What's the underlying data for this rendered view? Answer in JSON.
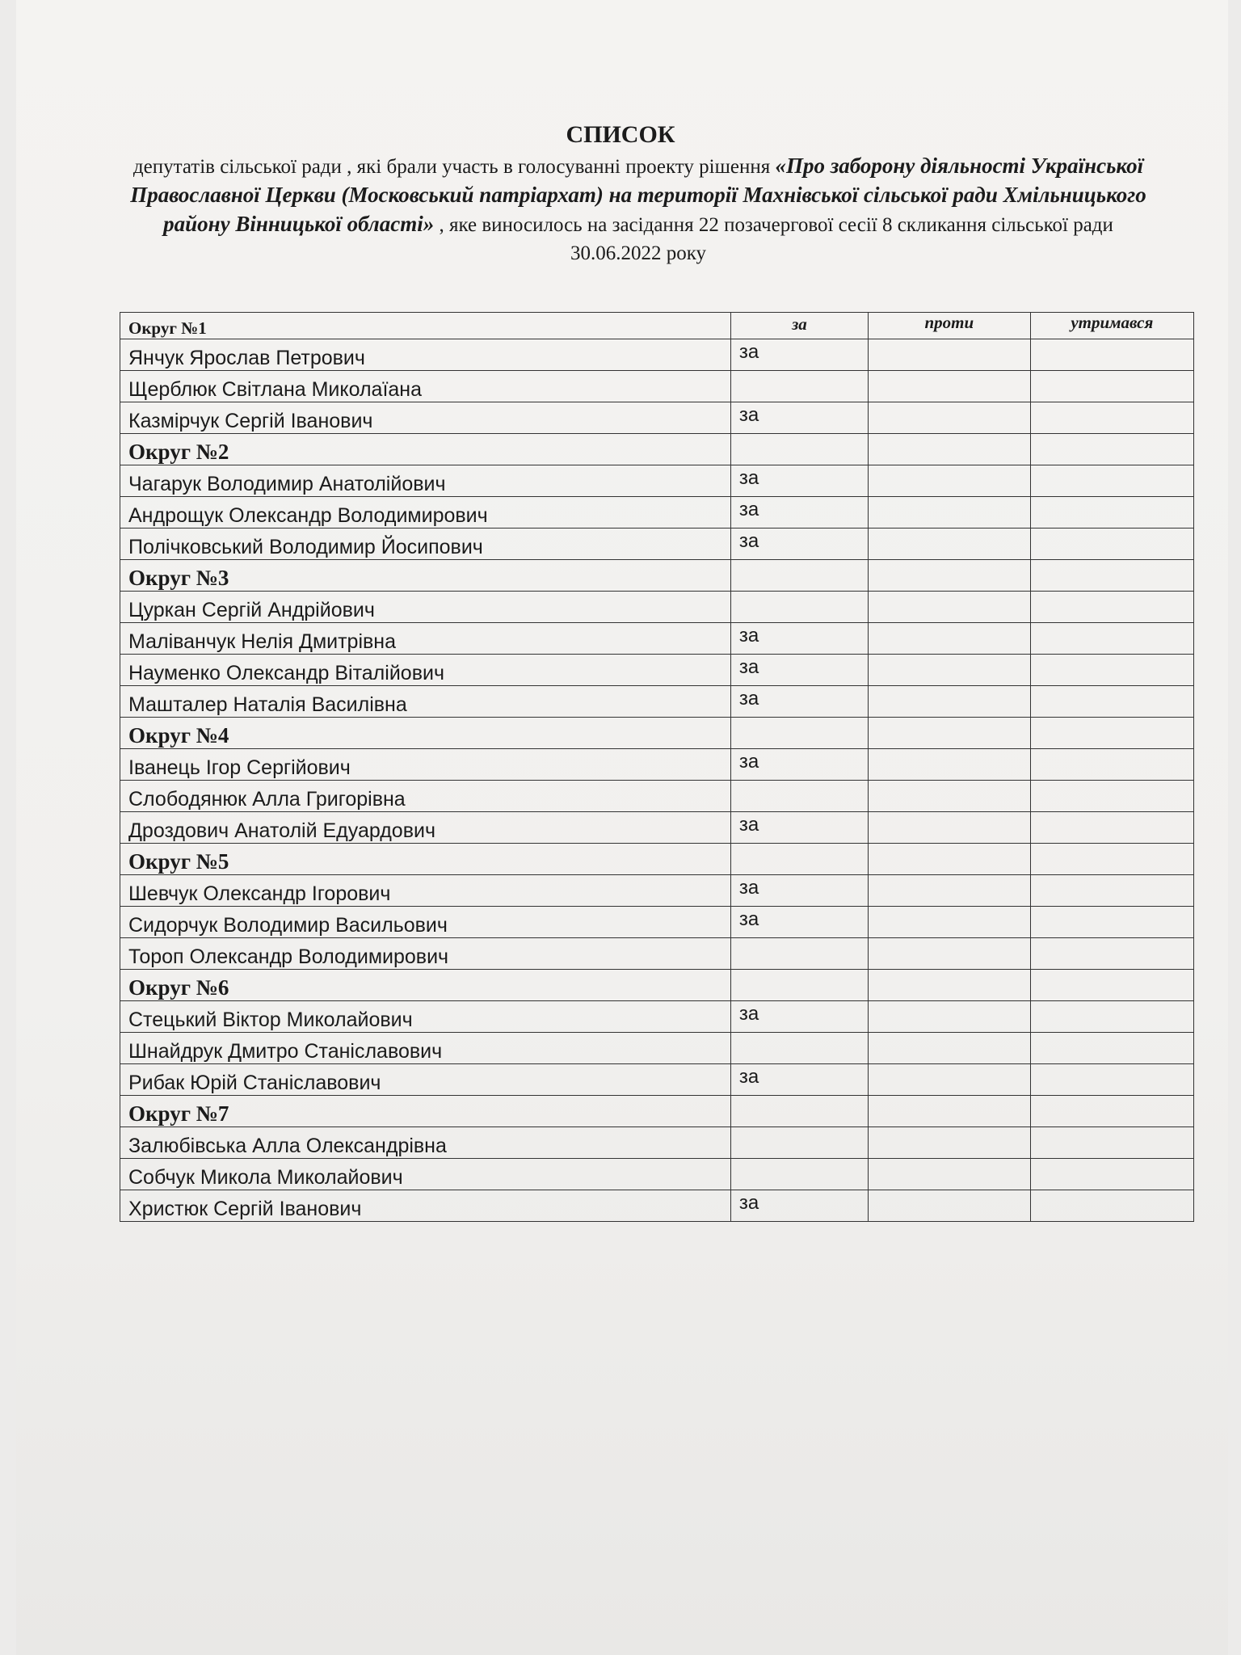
{
  "document": {
    "title": "СПИСОК",
    "intro": {
      "before": "депутатів сільської ради , які брали участь в голосуванні проекту рішення ",
      "subject": "«Про заборону діяльності Української Православної Церкви (Московський патріархат) на території Махнівської сільської ради Хмільницького району Вінницької області»",
      "after": " , яке виносилось на засідання 22 позачергової сесії 8 скликання сільської ради 30.06.2022 року"
    },
    "table": {
      "header": [
        "Округ №1",
        "за",
        "проти",
        "утримався"
      ],
      "rows": [
        {
          "name": "Янчук Ярослав Петрович",
          "vote": "за"
        },
        {
          "name": "Щерблюк Світлана Миколаїана"
        },
        {
          "name": "Казмірчук Сергій Іванович",
          "vote": "за"
        },
        {
          "section": "Округ №2"
        },
        {
          "name": "Чагарук Володимир Анатолійович",
          "vote": "за"
        },
        {
          "name": "Андрощук Олександр Володимирович",
          "vote": "за"
        },
        {
          "name": "Полічковський Володимир Йосипович",
          "vote": "за"
        },
        {
          "section": "Округ №3"
        },
        {
          "name": "Цуркан Сергій Андрійович"
        },
        {
          "name": "Маліванчук Нелія Дмитрівна",
          "vote": "за"
        },
        {
          "name": "Науменко Олександр Віталійович",
          "vote": "за"
        },
        {
          "name": "Машталер Наталія Василівна",
          "vote": "за"
        },
        {
          "section": "Округ №4"
        },
        {
          "name": "Іванець Ігор Сергійович",
          "vote": "за"
        },
        {
          "name": "Слободянюк Алла Григорівна"
        },
        {
          "name": "Дроздович Анатолій Едуардович",
          "vote": "за"
        },
        {
          "section": "Округ №5"
        },
        {
          "name": "Шевчук Олександр Ігорович",
          "vote": "за"
        },
        {
          "name": "Сидорчук Володимир Васильович",
          "vote": "за"
        },
        {
          "name": "Тороп Олександр Володимирович"
        },
        {
          "section": "Округ №6"
        },
        {
          "name": "Стецький Віктор Миколайович",
          "vote": "за"
        },
        {
          "name": "Шнайдрук Дмитро Станіславович"
        },
        {
          "name": "Рибак Юрій Станіславович",
          "vote": "за"
        },
        {
          "section": "Округ №7"
        },
        {
          "name": "Залюбівська Алла Олександрівна"
        },
        {
          "name": "Собчук Микола Миколайович"
        },
        {
          "name": "Христюк Сергій Іванович",
          "vote": "за"
        }
      ]
    }
  }
}
